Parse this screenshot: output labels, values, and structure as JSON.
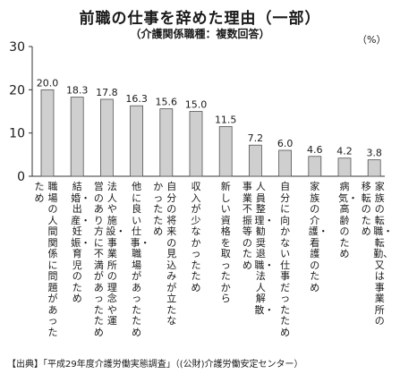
{
  "chart_data": {
    "type": "bar",
    "title": "前職の仕事を辞めた理由（一部）",
    "subtitle": "（介護関係職種：複数回答）",
    "unit": "（%）",
    "ylim": [
      0,
      30
    ],
    "yticks": [
      0,
      10,
      20,
      30
    ],
    "grid": false,
    "legend": "none",
    "bar_color": "#cfcfcf",
    "categories": [
      [
        "職場の人間関係に問題があった",
        "ため"
      ],
      [
        "結婚・出産・妊娠・育児のため"
      ],
      [
        "法人や施設・事業所の理念や運",
        "営のあり方に不満があったため"
      ],
      [
        "他に良い仕事・職場があったため"
      ],
      [
        "自分の将来の見込みが立たな",
        "かったため"
      ],
      [
        "収入が少なかったため"
      ],
      [
        "新しい資格を取ったから"
      ],
      [
        "人員整理・勧奨退職・法人解散・",
        "事業不振等のため"
      ],
      [
        "自分に向かない仕事だったため"
      ],
      [
        "家族の介護・看護のため"
      ],
      [
        "病気・高齢のため"
      ],
      [
        "家族の転職・転勤、又は事業所の",
        "移転のため"
      ]
    ],
    "values": [
      20.0,
      18.3,
      17.8,
      16.3,
      15.6,
      15.0,
      11.5,
      7.2,
      6.0,
      4.6,
      4.2,
      3.8
    ],
    "value_labels": [
      "20.0",
      "18.3",
      "17.8",
      "16.3",
      "15.6",
      "15.0",
      "11.5",
      "7.2",
      "6.0",
      "4.6",
      "4.2",
      "3.8"
    ]
  },
  "source": "【出典】「平成29年度介護労働実態調査」（(公財)介護労働安定センター）"
}
